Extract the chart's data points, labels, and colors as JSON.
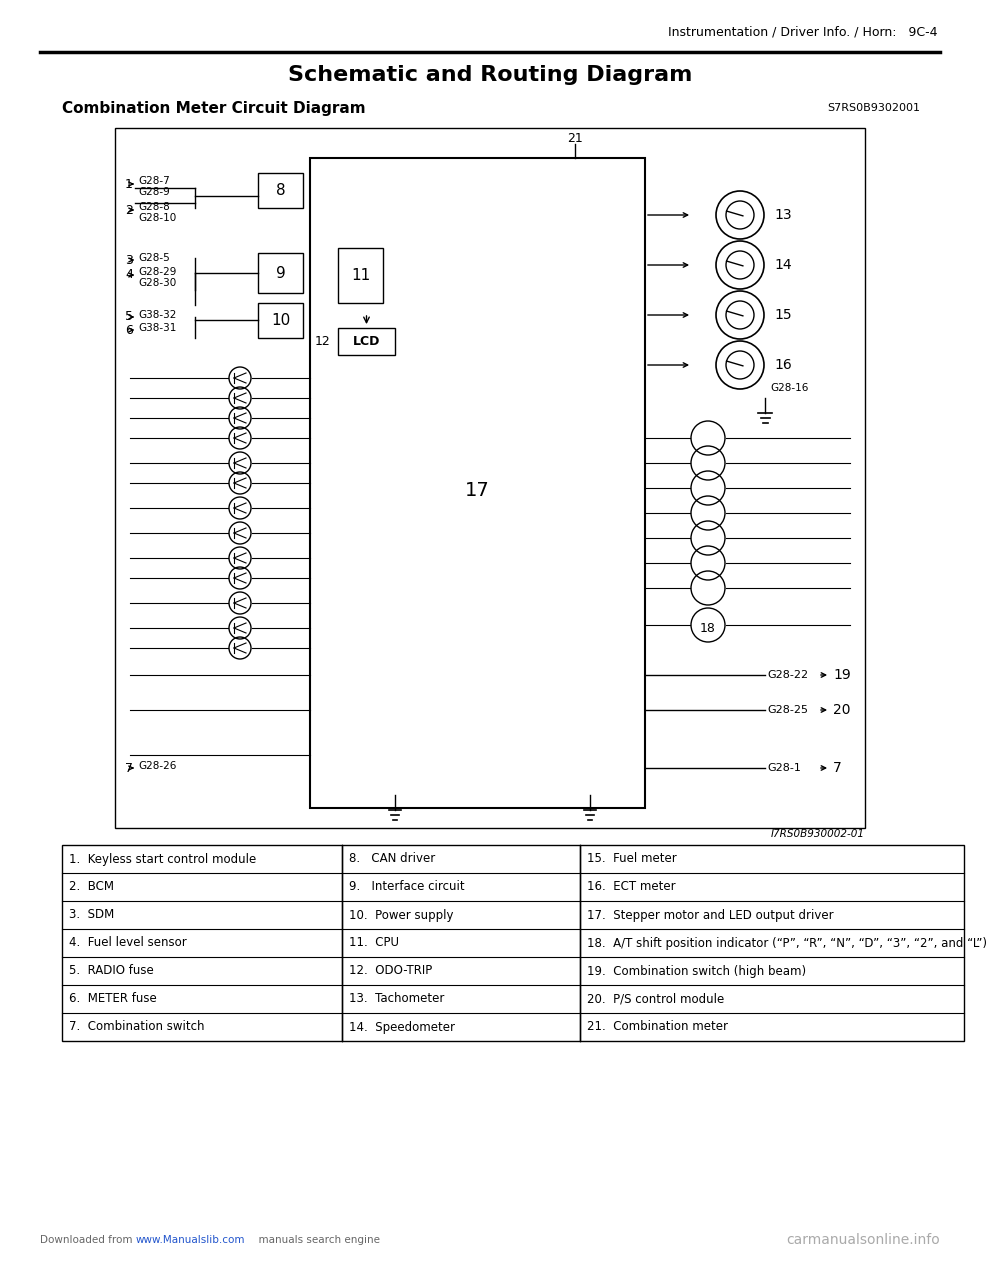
{
  "header_right": "Instrumentation / Driver Info. / Horn:   9C-4",
  "title": "Schematic and Routing Diagram",
  "subtitle": "Combination Meter Circuit Diagram",
  "subtitle_code": "S7RS0B9302001",
  "diagram_code": "I7RS0B930002-01",
  "footer_left_pre": "Downloaded from ",
  "footer_left_link": "www.Manualslib.com",
  "footer_left_post": "  manuals search engine",
  "footer_right": "carmanualsonline.info",
  "table_data": [
    [
      "1.  Keyless start control module",
      "8.   CAN driver",
      "15.  Fuel meter"
    ],
    [
      "2.  BCM",
      "9.   Interface circuit",
      "16.  ECT meter"
    ],
    [
      "3.  SDM",
      "10.  Power supply",
      "17.  Stepper motor and LED output driver"
    ],
    [
      "4.  Fuel level sensor",
      "11.  CPU",
      "18.  A/T shift position indicator (“P”, “R”, “N”, “D”, “3”, “2”, and “L”)"
    ],
    [
      "5.  RADIO fuse",
      "12.  ODO-TRIP",
      "19.  Combination switch (high beam)"
    ],
    [
      "6.  METER fuse",
      "13.  Tachometer",
      "20.  P/S control module"
    ],
    [
      "7.  Combination switch",
      "14.  Speedometer",
      "21.  Combination meter"
    ]
  ],
  "bg_color": "#ffffff",
  "text_color": "#000000",
  "line_color": "#000000"
}
